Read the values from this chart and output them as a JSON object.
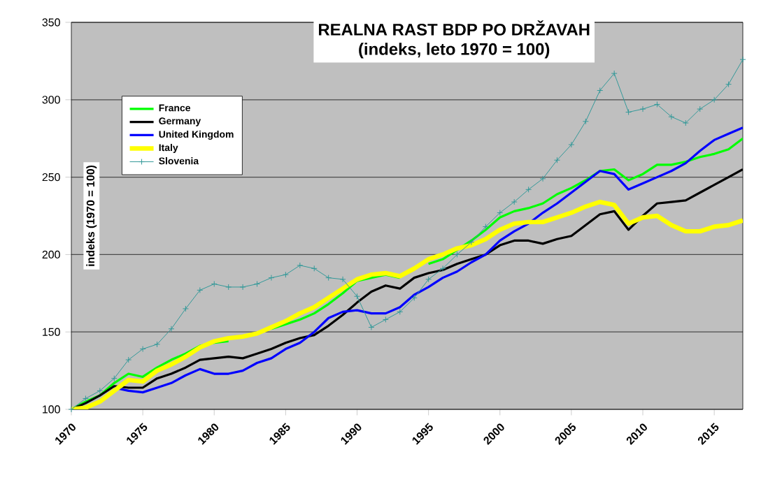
{
  "chart_data": {
    "type": "line",
    "title": "REALNA RAST BDP PO DRŽAVAH",
    "subtitle": "(indeks, leto 1970 = 100)",
    "ylabel": "indeks (1970 = 100)",
    "x": [
      1970,
      1971,
      1972,
      1973,
      1974,
      1975,
      1976,
      1977,
      1978,
      1979,
      1980,
      1981,
      1982,
      1983,
      1984,
      1985,
      1986,
      1987,
      1988,
      1989,
      1990,
      1991,
      1992,
      1993,
      1994,
      1995,
      1996,
      1997,
      1998,
      1999,
      2000,
      2001,
      2002,
      2003,
      2004,
      2005,
      2006,
      2007,
      2008,
      2009,
      2010,
      2011,
      2012,
      2013,
      2014,
      2015,
      2016,
      2017
    ],
    "series": [
      {
        "name": "France",
        "color": "#00ff00",
        "values": [
          100,
          105,
          109,
          117,
          123,
          121,
          127,
          132,
          136,
          141,
          143,
          144,
          null,
          null,
          152,
          155,
          158,
          162,
          168,
          175,
          183,
          185,
          187,
          185,
          null,
          194,
          197,
          203,
          209,
          216,
          224,
          228,
          230,
          233,
          239,
          243,
          248,
          254,
          255,
          248,
          252,
          258,
          258,
          260,
          263,
          265,
          268,
          275
        ]
      },
      {
        "name": "Germany",
        "color": "#000000",
        "values": [
          100,
          104,
          109,
          115,
          114,
          114,
          120,
          123,
          127,
          132,
          133,
          134,
          133,
          136,
          139,
          143,
          146,
          148,
          154,
          161,
          169,
          176,
          180,
          178,
          185,
          188,
          190,
          194,
          197,
          200,
          206,
          209,
          209,
          207,
          210,
          212,
          219,
          226,
          228,
          216,
          225,
          233,
          234,
          235,
          240,
          245,
          250,
          255
        ]
      },
      {
        "name": "United Kingdom",
        "color": "#0000ff",
        "values": [
          null,
          null,
          null,
          114,
          112,
          111,
          114,
          117,
          122,
          126,
          123,
          123,
          125,
          130,
          133,
          139,
          143,
          150,
          159,
          163,
          164,
          162,
          162,
          166,
          174,
          179,
          185,
          189,
          195,
          200,
          209,
          215,
          220,
          227,
          233,
          240,
          247,
          254,
          252,
          242,
          246,
          250,
          254,
          259,
          267,
          274,
          278,
          282
        ]
      },
      {
        "name": "Italy",
        "color": "#ffff00",
        "values": [
          100,
          101,
          105,
          112,
          119,
          118,
          125,
          129,
          134,
          140,
          144,
          146,
          147,
          149,
          153,
          157,
          162,
          166,
          172,
          178,
          184,
          187,
          188,
          186,
          191,
          197,
          200,
          204,
          206,
          210,
          216,
          220,
          221,
          221,
          224,
          227,
          231,
          234,
          232,
          220,
          224,
          225,
          219,
          215,
          215,
          218,
          219,
          222
        ]
      },
      {
        "name": "Slovenia",
        "color": "#339999",
        "marker": "cross",
        "values": [
          100,
          107,
          112,
          120,
          132,
          139,
          142,
          152,
          165,
          177,
          181,
          179,
          179,
          181,
          185,
          187,
          193,
          191,
          185,
          184,
          173,
          153,
          158,
          163,
          172,
          184,
          191,
          200,
          208,
          218,
          227,
          234,
          242,
          249,
          261,
          271,
          286,
          306,
          317,
          292,
          294,
          297,
          289,
          285,
          294,
          300,
          310,
          326
        ]
      }
    ],
    "xlim": [
      1970,
      2017
    ],
    "xticks": [
      1970,
      1975,
      1980,
      1985,
      1990,
      1995,
      2000,
      2005,
      2010,
      2015
    ],
    "ylim": [
      100,
      350
    ],
    "yticks": [
      100,
      150,
      200,
      250,
      300,
      350
    ],
    "grid": "y",
    "legend": "top left"
  }
}
